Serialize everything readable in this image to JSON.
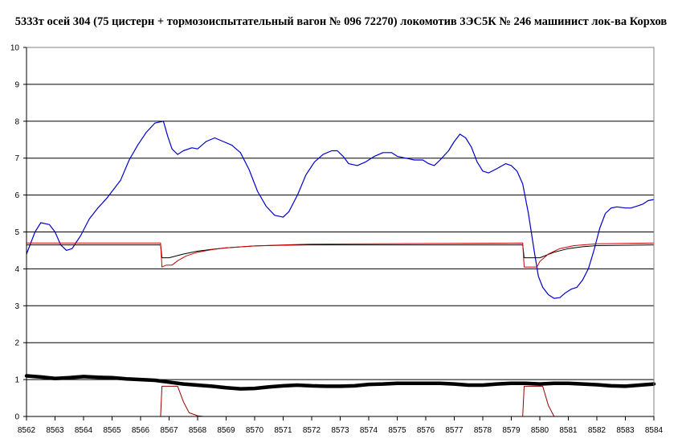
{
  "chart_data": {
    "type": "line",
    "title": "5333т осей 304 (75 цистерн + тормозоиспытательный вагон № 096 72270) локомотив 3ЭС5К № 246 машинист лок-ва Корхов",
    "xlabel": "",
    "ylabel": "",
    "xlim": [
      8562,
      8584
    ],
    "ylim": [
      0,
      10
    ],
    "x_ticks": [
      "8562",
      "8563",
      "8564",
      "8565",
      "8566",
      "8567",
      "8568",
      "8569",
      "8570",
      "8571",
      "8572",
      "8573",
      "8574",
      "8575",
      "8576",
      "8577",
      "8578",
      "8579",
      "8580",
      "8581",
      "8582",
      "8583",
      "8584"
    ],
    "y_ticks": [
      "0",
      "1",
      "2",
      "3",
      "4",
      "5",
      "6",
      "7",
      "8",
      "9",
      "10"
    ],
    "grid": "horizontal",
    "legend": "none",
    "series": [
      {
        "color": "#0000cc",
        "width": 1.2,
        "points": [
          [
            8562,
            4.4
          ],
          [
            8562.3,
            5.0
          ],
          [
            8562.5,
            5.25
          ],
          [
            8562.8,
            5.2
          ],
          [
            8563,
            5.0
          ],
          [
            8563.2,
            4.65
          ],
          [
            8563.4,
            4.5
          ],
          [
            8563.6,
            4.55
          ],
          [
            8563.9,
            4.9
          ],
          [
            8564.2,
            5.35
          ],
          [
            8564.5,
            5.65
          ],
          [
            8564.8,
            5.9
          ],
          [
            8565,
            6.1
          ],
          [
            8565.3,
            6.4
          ],
          [
            8565.6,
            6.95
          ],
          [
            8565.9,
            7.35
          ],
          [
            8566.2,
            7.7
          ],
          [
            8566.5,
            7.95
          ],
          [
            8566.8,
            8.0
          ],
          [
            8566.95,
            7.6
          ],
          [
            8567.1,
            7.25
          ],
          [
            8567.3,
            7.1
          ],
          [
            8567.5,
            7.2
          ],
          [
            8567.8,
            7.28
          ],
          [
            8568.0,
            7.25
          ],
          [
            8568.3,
            7.45
          ],
          [
            8568.6,
            7.55
          ],
          [
            8568.9,
            7.45
          ],
          [
            8569.2,
            7.35
          ],
          [
            8569.5,
            7.15
          ],
          [
            8569.8,
            6.7
          ],
          [
            8570.1,
            6.1
          ],
          [
            8570.4,
            5.7
          ],
          [
            8570.7,
            5.45
          ],
          [
            8571.0,
            5.4
          ],
          [
            8571.2,
            5.55
          ],
          [
            8571.5,
            6.0
          ],
          [
            8571.8,
            6.55
          ],
          [
            8572.1,
            6.9
          ],
          [
            8572.4,
            7.1
          ],
          [
            8572.7,
            7.2
          ],
          [
            8572.9,
            7.2
          ],
          [
            8573.1,
            7.05
          ],
          [
            8573.3,
            6.85
          ],
          [
            8573.6,
            6.8
          ],
          [
            8573.9,
            6.9
          ],
          [
            8574.2,
            7.05
          ],
          [
            8574.5,
            7.15
          ],
          [
            8574.8,
            7.15
          ],
          [
            8575.0,
            7.05
          ],
          [
            8575.3,
            7.0
          ],
          [
            8575.6,
            6.95
          ],
          [
            8575.9,
            6.95
          ],
          [
            8576.1,
            6.85
          ],
          [
            8576.3,
            6.8
          ],
          [
            8576.5,
            6.95
          ],
          [
            8576.8,
            7.2
          ],
          [
            8577.0,
            7.45
          ],
          [
            8577.2,
            7.65
          ],
          [
            8577.4,
            7.55
          ],
          [
            8577.6,
            7.3
          ],
          [
            8577.8,
            6.9
          ],
          [
            8578.0,
            6.65
          ],
          [
            8578.2,
            6.6
          ],
          [
            8578.5,
            6.72
          ],
          [
            8578.8,
            6.85
          ],
          [
            8579.0,
            6.8
          ],
          [
            8579.2,
            6.65
          ],
          [
            8579.4,
            6.3
          ],
          [
            8579.6,
            5.5
          ],
          [
            8579.8,
            4.5
          ],
          [
            8579.95,
            3.8
          ],
          [
            8580.1,
            3.5
          ],
          [
            8580.3,
            3.3
          ],
          [
            8580.5,
            3.2
          ],
          [
            8580.7,
            3.22
          ],
          [
            8580.9,
            3.35
          ],
          [
            8581.1,
            3.45
          ],
          [
            8581.3,
            3.5
          ],
          [
            8581.5,
            3.7
          ],
          [
            8581.7,
            4.0
          ],
          [
            8581.9,
            4.5
          ],
          [
            8582.1,
            5.1
          ],
          [
            8582.3,
            5.5
          ],
          [
            8582.5,
            5.65
          ],
          [
            8582.7,
            5.68
          ],
          [
            8583.0,
            5.65
          ],
          [
            8583.2,
            5.65
          ],
          [
            8583.4,
            5.7
          ],
          [
            8583.6,
            5.75
          ],
          [
            8583.8,
            5.85
          ],
          [
            8584,
            5.88
          ]
        ]
      },
      {
        "color": "#000000",
        "width": 1.0,
        "points": [
          [
            8562,
            4.65
          ],
          [
            8566.7,
            4.65
          ],
          [
            8566.75,
            4.3
          ],
          [
            8567.0,
            4.3
          ],
          [
            8567.5,
            4.4
          ],
          [
            8568.0,
            4.48
          ],
          [
            8568.5,
            4.53
          ],
          [
            8569.0,
            4.57
          ],
          [
            8570.0,
            4.62
          ],
          [
            8571.0,
            4.64
          ],
          [
            8572.0,
            4.65
          ],
          [
            8579.4,
            4.65
          ],
          [
            8579.45,
            4.3
          ],
          [
            8580.0,
            4.3
          ],
          [
            8580.5,
            4.45
          ],
          [
            8581.0,
            4.55
          ],
          [
            8581.5,
            4.6
          ],
          [
            8582.0,
            4.63
          ],
          [
            8584,
            4.65
          ]
        ]
      },
      {
        "color": "#cc0000",
        "width": 1.0,
        "points": [
          [
            8562,
            4.7
          ],
          [
            8566.7,
            4.7
          ],
          [
            8566.75,
            4.05
          ],
          [
            8566.9,
            4.1
          ],
          [
            8567.1,
            4.1
          ],
          [
            8567.3,
            4.22
          ],
          [
            8567.6,
            4.35
          ],
          [
            8568.0,
            4.45
          ],
          [
            8568.5,
            4.52
          ],
          [
            8569.0,
            4.57
          ],
          [
            8570.0,
            4.62
          ],
          [
            8571.0,
            4.65
          ],
          [
            8572.0,
            4.67
          ],
          [
            8579.4,
            4.7
          ],
          [
            8579.45,
            4.05
          ],
          [
            8579.9,
            4.05
          ],
          [
            8580.0,
            4.2
          ],
          [
            8580.3,
            4.4
          ],
          [
            8580.7,
            4.55
          ],
          [
            8581.2,
            4.63
          ],
          [
            8582.0,
            4.68
          ],
          [
            8584,
            4.7
          ]
        ]
      },
      {
        "color": "#000000",
        "width": 4.5,
        "points": [
          [
            8562,
            1.1
          ],
          [
            8562.5,
            1.07
          ],
          [
            8563,
            1.03
          ],
          [
            8563.5,
            1.05
          ],
          [
            8564,
            1.08
          ],
          [
            8564.5,
            1.06
          ],
          [
            8565,
            1.05
          ],
          [
            8565.5,
            1.02
          ],
          [
            8566,
            1.0
          ],
          [
            8566.5,
            0.98
          ],
          [
            8567,
            0.93
          ],
          [
            8567.5,
            0.88
          ],
          [
            8568,
            0.85
          ],
          [
            8568.5,
            0.82
          ],
          [
            8569,
            0.78
          ],
          [
            8569.5,
            0.75
          ],
          [
            8570,
            0.76
          ],
          [
            8570.5,
            0.8
          ],
          [
            8571,
            0.83
          ],
          [
            8571.5,
            0.85
          ],
          [
            8572,
            0.83
          ],
          [
            8572.5,
            0.82
          ],
          [
            8573,
            0.82
          ],
          [
            8573.5,
            0.83
          ],
          [
            8574,
            0.87
          ],
          [
            8574.5,
            0.88
          ],
          [
            8575,
            0.9
          ],
          [
            8575.5,
            0.9
          ],
          [
            8576,
            0.9
          ],
          [
            8576.5,
            0.9
          ],
          [
            8577,
            0.88
          ],
          [
            8577.5,
            0.85
          ],
          [
            8578,
            0.85
          ],
          [
            8578.5,
            0.88
          ],
          [
            8579,
            0.9
          ],
          [
            8579.5,
            0.9
          ],
          [
            8580,
            0.88
          ],
          [
            8580.5,
            0.9
          ],
          [
            8581,
            0.9
          ],
          [
            8581.5,
            0.88
          ],
          [
            8582,
            0.86
          ],
          [
            8582.5,
            0.83
          ],
          [
            8583,
            0.82
          ],
          [
            8583.5,
            0.85
          ],
          [
            8584,
            0.88
          ]
        ]
      },
      {
        "color": "#990000",
        "width": 1.0,
        "points": [
          [
            8562,
            0
          ],
          [
            8566.7,
            0
          ],
          [
            8566.75,
            0.82
          ],
          [
            8567.3,
            0.82
          ],
          [
            8567.5,
            0.4
          ],
          [
            8567.7,
            0.1
          ],
          [
            8568,
            0.02
          ],
          [
            8568.2,
            0
          ],
          [
            8579.4,
            0
          ],
          [
            8579.45,
            0.82
          ],
          [
            8580.1,
            0.82
          ],
          [
            8580.3,
            0.3
          ],
          [
            8580.5,
            0
          ],
          [
            8584,
            0
          ]
        ]
      }
    ]
  }
}
